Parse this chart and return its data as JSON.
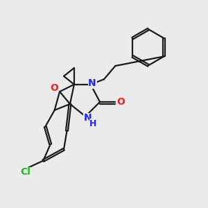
{
  "background_color": "#ebebeb",
  "bond_color": "#1a1a1a",
  "N_color": "#2020ff",
  "O_color": "#ff2020",
  "Cl_color": "#22bb22",
  "line_width": 1.6,
  "figsize": [
    3.0,
    3.0
  ],
  "dpi": 100,
  "xlim": [
    0,
    10
  ],
  "ylim": [
    0,
    10
  ]
}
